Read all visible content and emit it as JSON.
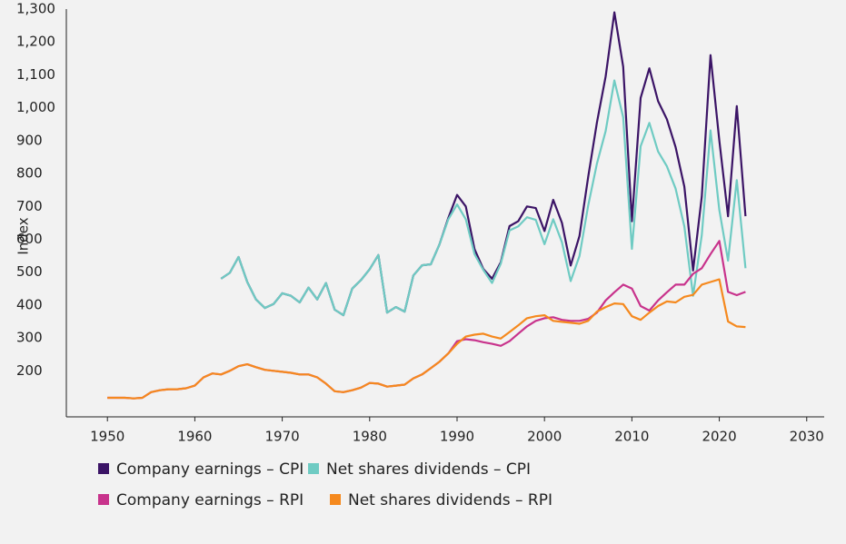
{
  "chart_data": {
    "type": "line",
    "y_label": "Index",
    "x": [
      1950,
      1951,
      1952,
      1953,
      1954,
      1955,
      1956,
      1957,
      1958,
      1959,
      1960,
      1961,
      1962,
      1963,
      1964,
      1965,
      1966,
      1967,
      1968,
      1969,
      1970,
      1971,
      1972,
      1973,
      1974,
      1975,
      1976,
      1977,
      1978,
      1979,
      1980,
      1981,
      1982,
      1983,
      1984,
      1985,
      1986,
      1987,
      1988,
      1989,
      1990,
      1991,
      1992,
      1993,
      1994,
      1995,
      1996,
      1997,
      1998,
      1999,
      2000,
      2001,
      2002,
      2003,
      2004,
      2005,
      2006,
      2007,
      2008,
      2009,
      2010,
      2011,
      2012,
      2013,
      2014,
      2015,
      2016,
      2017,
      2018,
      2019,
      2020,
      2021,
      2022,
      2023
    ],
    "series": [
      {
        "name": "Company earnings – CPI",
        "color": "#3b1466",
        "values": [
          null,
          null,
          null,
          null,
          null,
          null,
          null,
          null,
          null,
          null,
          null,
          null,
          null,
          480,
          498,
          546,
          470,
          417,
          391,
          403,
          436,
          428,
          408,
          453,
          417,
          467,
          386,
          369,
          450,
          476,
          509,
          552,
          377,
          394,
          380,
          490,
          521,
          524,
          585,
          665,
          735,
          700,
          570,
          510,
          480,
          530,
          640,
          655,
          700,
          695,
          625,
          720,
          650,
          520,
          610,
          790,
          955,
          1095,
          1290,
          1125,
          655,
          1030,
          1120,
          1020,
          965,
          880,
          760,
          505,
          730,
          1160,
          900,
          670,
          1005,
          670
        ]
      },
      {
        "name": "Net shares dividends – CPI",
        "color": "#6fcbc3",
        "values": [
          null,
          null,
          null,
          null,
          null,
          null,
          null,
          null,
          null,
          null,
          null,
          null,
          null,
          480,
          498,
          546,
          470,
          417,
          391,
          403,
          436,
          428,
          408,
          453,
          417,
          467,
          386,
          369,
          450,
          476,
          509,
          552,
          377,
          394,
          380,
          490,
          521,
          524,
          585,
          661,
          706,
          661,
          555,
          507,
          467,
          526,
          627,
          639,
          667,
          659,
          585,
          661,
          591,
          473,
          549,
          703,
          830,
          929,
          1083,
          971,
          571,
          883,
          954,
          867,
          822,
          754,
          639,
          428,
          613,
          931,
          689,
          535,
          780,
          512
        ]
      },
      {
        "name": "Company earnings – RPI",
        "color": "#c8338c",
        "values": [
          118,
          118,
          118,
          116,
          118,
          135,
          141,
          144,
          144,
          147,
          155,
          180,
          192,
          189,
          200,
          214,
          220,
          211,
          203,
          200,
          197,
          194,
          189,
          189,
          180,
          161,
          138,
          135,
          141,
          149,
          163,
          161,
          152,
          155,
          158,
          177,
          189,
          208,
          228,
          253,
          290,
          296,
          293,
          287,
          282,
          276,
          290,
          313,
          335,
          352,
          360,
          363,
          355,
          352,
          352,
          358,
          377,
          414,
          439,
          462,
          450,
          397,
          383,
          414,
          439,
          462,
          462,
          495,
          512,
          555,
          595,
          440,
          430,
          440
        ]
      },
      {
        "name": "Net shares dividends – RPI",
        "color": "#f5891e",
        "values": [
          118,
          118,
          118,
          116,
          118,
          135,
          141,
          144,
          144,
          147,
          155,
          180,
          192,
          189,
          200,
          214,
          220,
          211,
          203,
          200,
          197,
          194,
          189,
          189,
          180,
          161,
          138,
          135,
          141,
          149,
          163,
          161,
          152,
          155,
          158,
          177,
          189,
          208,
          228,
          253,
          282,
          304,
          310,
          313,
          304,
          298,
          318,
          338,
          360,
          366,
          369,
          352,
          349,
          346,
          343,
          352,
          380,
          394,
          405,
          403,
          366,
          355,
          377,
          397,
          411,
          408,
          425,
          431,
          462,
          470,
          478,
          350,
          335,
          333
        ]
      }
    ],
    "xlim": [
      1945.3,
      2032
    ],
    "xticks": [
      1950,
      1960,
      1970,
      1980,
      1990,
      2000,
      2010,
      2020,
      2030
    ],
    "ylim": [
      60,
      1300
    ],
    "yticks": [
      200,
      300,
      400,
      500,
      600,
      700,
      800,
      900,
      {
        "value": 1000,
        "label": "1,000"
      },
      {
        "value": 1100,
        "label": "1,100"
      },
      {
        "value": 1200,
        "label": "1,200"
      },
      {
        "value": 1300,
        "label": "1,300"
      }
    ]
  }
}
